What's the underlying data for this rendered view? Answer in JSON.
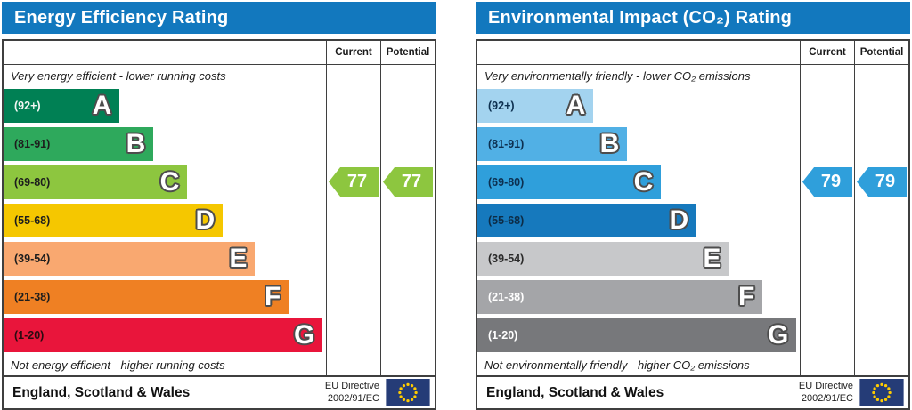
{
  "charts": [
    {
      "title": "Energy Efficiency Rating",
      "header_color": "#1278BE",
      "columns": {
        "current": "Current",
        "potential": "Potential"
      },
      "top_caption": "Very energy efficient - lower running costs",
      "bottom_caption": "Not energy efficient - higher running costs",
      "bands": [
        {
          "letter": "A",
          "range": "(92+)",
          "color": "#008054",
          "label_color": "#f2f7f4",
          "width_pct": 36
        },
        {
          "letter": "B",
          "range": "(81-91)",
          "color": "#2EA95C",
          "label_color": "#1d1d1d",
          "width_pct": 46.5
        },
        {
          "letter": "C",
          "range": "(69-80)",
          "color": "#8DC63F",
          "label_color": "#1d1d1d",
          "width_pct": 57
        },
        {
          "letter": "D",
          "range": "(55-68)",
          "color": "#F5C700",
          "label_color": "#1d1d1d",
          "width_pct": 68
        },
        {
          "letter": "E",
          "range": "(39-54)",
          "color": "#F9A870",
          "label_color": "#1d1d1d",
          "width_pct": 78
        },
        {
          "letter": "F",
          "range": "(21-38)",
          "color": "#EF8023",
          "label_color": "#1d1d1d",
          "width_pct": 88.5
        },
        {
          "letter": "G",
          "range": "(1-20)",
          "color": "#E9153B",
          "label_color": "#2b0b10",
          "width_pct": 99
        }
      ],
      "arrow_color": "#8DC63F",
      "current": {
        "value": "77",
        "band_index": 2
      },
      "potential": {
        "value": "77",
        "band_index": 2
      },
      "footer": {
        "region": "England, Scotland & Wales",
        "directive_line1": "EU Directive",
        "directive_line2": "2002/91/EC"
      }
    },
    {
      "title": "Environmental Impact (CO₂) Rating",
      "header_color": "#1278BE",
      "columns": {
        "current": "Current",
        "potential": "Potential"
      },
      "top_caption": "Very environmentally friendly - lower CO₂ emissions",
      "bottom_caption": "Not environmentally friendly - higher CO₂ emissions",
      "bands": [
        {
          "letter": "A",
          "range": "(92+)",
          "color": "#A3D3EF",
          "label_color": "#0d3050",
          "width_pct": 36
        },
        {
          "letter": "B",
          "range": "(81-91)",
          "color": "#51B0E5",
          "label_color": "#0d3050",
          "width_pct": 46.5
        },
        {
          "letter": "C",
          "range": "(69-80)",
          "color": "#2F9FDB",
          "label_color": "#0d3050",
          "width_pct": 57
        },
        {
          "letter": "D",
          "range": "(55-68)",
          "color": "#1679BD",
          "label_color": "#0d2c46",
          "width_pct": 68
        },
        {
          "letter": "E",
          "range": "(39-54)",
          "color": "#C7C8CA",
          "label_color": "#2b2b2b",
          "width_pct": 78
        },
        {
          "letter": "F",
          "range": "(21-38)",
          "color": "#A4A5A8",
          "label_color": "#ffffff",
          "width_pct": 88.5
        },
        {
          "letter": "G",
          "range": "(1-20)",
          "color": "#77787B",
          "label_color": "#ffffff",
          "width_pct": 99
        }
      ],
      "arrow_color": "#2F9FDB",
      "current": {
        "value": "79",
        "band_index": 2
      },
      "potential": {
        "value": "79",
        "band_index": 2
      },
      "footer": {
        "region": "England, Scotland & Wales",
        "directive_line1": "EU Directive",
        "directive_line2": "2002/91/EC"
      }
    }
  ],
  "eu_flag": {
    "background": "#253C77",
    "star_color": "#FFCC00",
    "star_count": 12
  },
  "chart_data": [
    {
      "type": "bar",
      "title": "Energy Efficiency Rating",
      "orientation": "horizontal",
      "categories": [
        "A (92+)",
        "B (81-91)",
        "C (69-80)",
        "D (55-68)",
        "E (39-54)",
        "F (21-38)",
        "G (1-20)"
      ],
      "values": [
        36,
        46.5,
        57,
        68,
        78,
        88.5,
        99
      ],
      "values_unit": "relative bar width, % of plot area",
      "band_ranges": [
        "92+",
        "81-91",
        "69-80",
        "55-68",
        "39-54",
        "21-38",
        "1-20"
      ],
      "current": 77,
      "potential": 77,
      "current_band": "C",
      "potential_band": "C",
      "top_label": "Very energy efficient - lower running costs",
      "bottom_label": "Not energy efficient - higher running costs",
      "footer": "England, Scotland & Wales",
      "directive": "EU Directive 2002/91/EC",
      "grid": false,
      "legend_position": "none"
    },
    {
      "type": "bar",
      "title": "Environmental Impact (CO₂) Rating",
      "orientation": "horizontal",
      "categories": [
        "A (92+)",
        "B (81-91)",
        "C (69-80)",
        "D (55-68)",
        "E (39-54)",
        "F (21-38)",
        "G (1-20)"
      ],
      "values": [
        36,
        46.5,
        57,
        68,
        78,
        88.5,
        99
      ],
      "values_unit": "relative bar width, % of plot area",
      "band_ranges": [
        "92+",
        "81-91",
        "69-80",
        "55-68",
        "39-54",
        "21-38",
        "1-20"
      ],
      "current": 79,
      "potential": 79,
      "current_band": "C",
      "potential_band": "C",
      "top_label": "Very environmentally friendly - lower CO₂ emissions",
      "bottom_label": "Not environmentally friendly - higher CO₂ emissions",
      "footer": "England, Scotland & Wales",
      "directive": "EU Directive 2002/91/EC",
      "grid": false,
      "legend_position": "none"
    }
  ]
}
